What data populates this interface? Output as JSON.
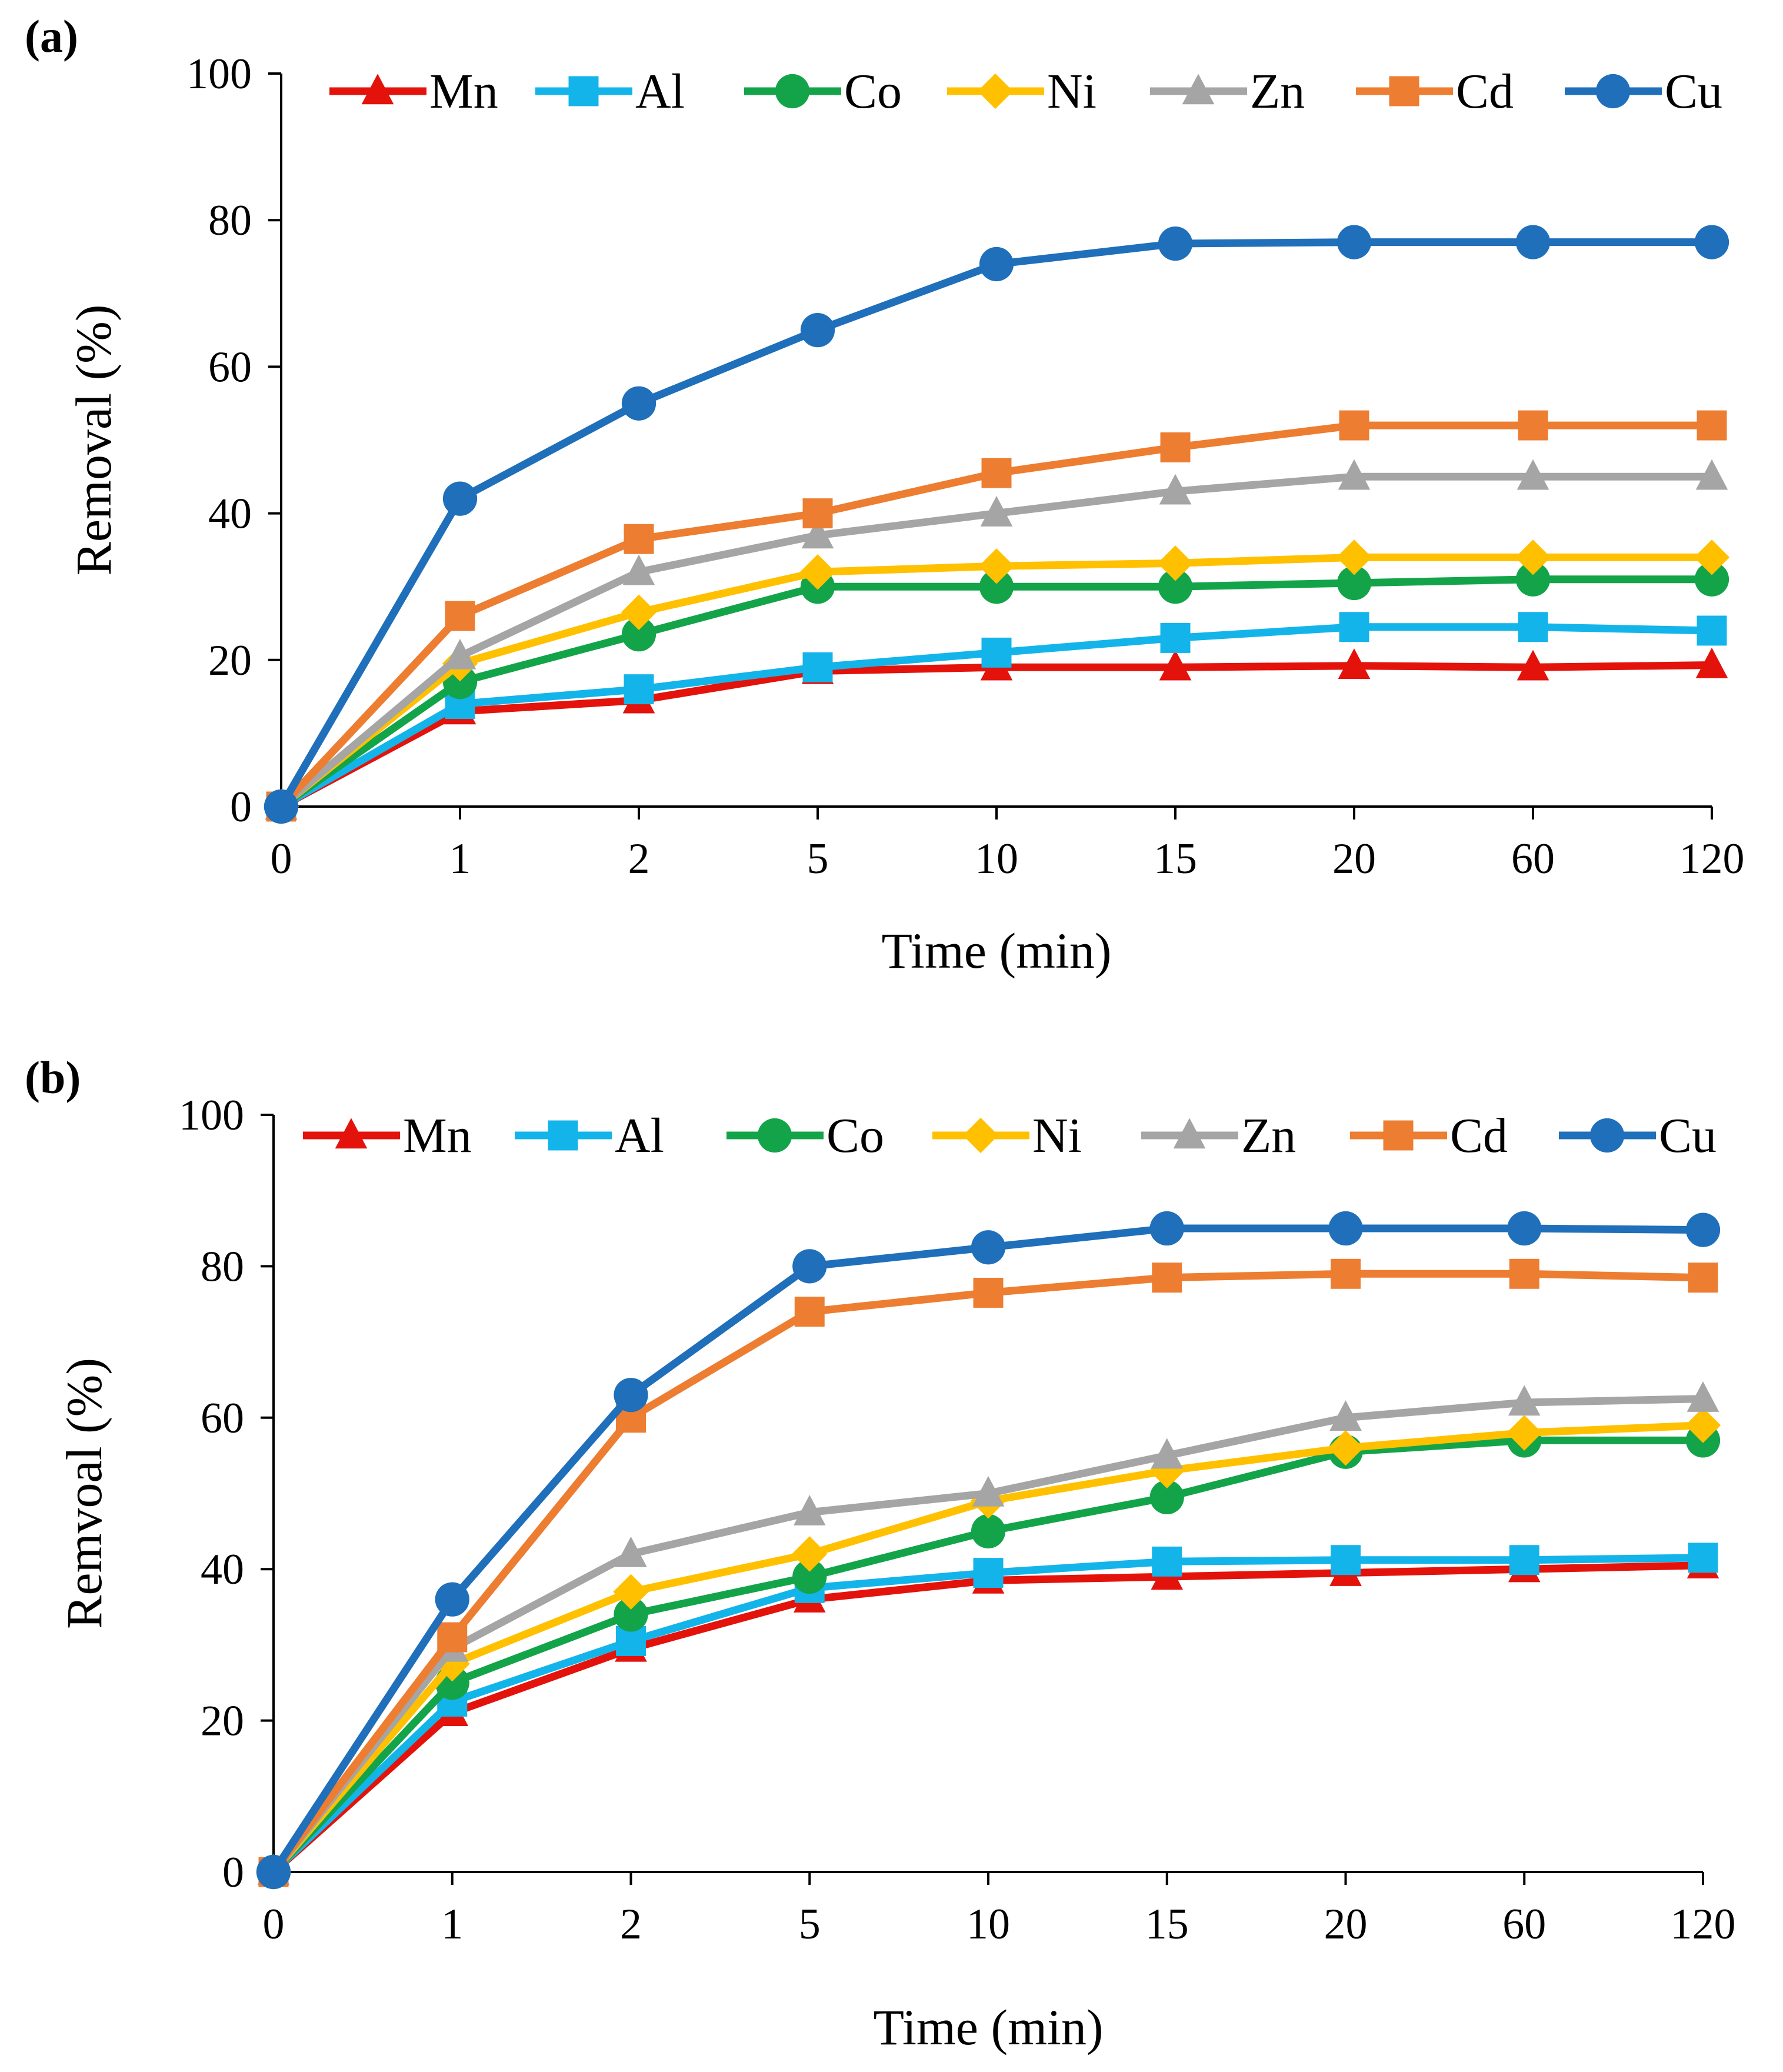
{
  "chart_data": [
    {
      "type": "line",
      "panel_label": "(a)",
      "categories": [
        "0",
        "1",
        "2",
        "5",
        "10",
        "15",
        "20",
        "60",
        "120"
      ],
      "xlabel": "Time (min)",
      "ylabel": "Removal (%)",
      "ylim": [
        0,
        100
      ],
      "yticks": [
        "0",
        "20",
        "40",
        "60",
        "80",
        "100"
      ],
      "legend_position": "top",
      "series": [
        {
          "name": "Mn",
          "color": "#e3120b",
          "marker": "triangle",
          "values": [
            0,
            13,
            14.5,
            18.5,
            19,
            19,
            19.2,
            19,
            19.3
          ]
        },
        {
          "name": "Al",
          "color": "#13b4ea",
          "marker": "square",
          "values": [
            0,
            14,
            16,
            19,
            21,
            23,
            24.5,
            24.5,
            24
          ]
        },
        {
          "name": "Co",
          "color": "#13a44a",
          "marker": "circle",
          "values": [
            0,
            17,
            23.5,
            30,
            30,
            30,
            30.5,
            31,
            31
          ]
        },
        {
          "name": "Ni",
          "color": "#ffc000",
          "marker": "diamond",
          "values": [
            0,
            19.5,
            26.5,
            32,
            32.8,
            33.2,
            34,
            34,
            34
          ]
        },
        {
          "name": "Zn",
          "color": "#a5a5a5",
          "marker": "triangle",
          "values": [
            0,
            20.5,
            32,
            37,
            40,
            43,
            45,
            45,
            45
          ]
        },
        {
          "name": "Cd",
          "color": "#ed7d31",
          "marker": "square",
          "values": [
            0,
            26,
            36.5,
            40,
            45.5,
            49,
            52,
            52,
            52
          ]
        },
        {
          "name": "Cu",
          "color": "#1f6fba",
          "marker": "circle",
          "values": [
            0,
            42,
            55,
            65,
            74,
            76.8,
            77,
            77,
            77
          ]
        }
      ]
    },
    {
      "type": "line",
      "panel_label": "(b)",
      "categories": [
        "0",
        "1",
        "2",
        "5",
        "10",
        "15",
        "20",
        "60",
        "120"
      ],
      "xlabel": "Time (min)",
      "ylabel": "Remvoal (%)",
      "ylim": [
        0,
        100
      ],
      "yticks": [
        "0",
        "20",
        "40",
        "60",
        "80",
        "100"
      ],
      "legend_position": "top",
      "series": [
        {
          "name": "Mn",
          "color": "#e3120b",
          "marker": "triangle",
          "values": [
            0,
            21,
            29.5,
            36,
            38.5,
            39,
            39.5,
            40,
            40.5
          ]
        },
        {
          "name": "Al",
          "color": "#13b4ea",
          "marker": "square",
          "values": [
            0,
            22.5,
            30.5,
            37.5,
            39.5,
            41,
            41.2,
            41.2,
            41.5
          ]
        },
        {
          "name": "Co",
          "color": "#13a44a",
          "marker": "circle",
          "values": [
            0,
            25,
            34,
            39,
            45,
            49.5,
            55.5,
            57,
            57
          ]
        },
        {
          "name": "Ni",
          "color": "#ffc000",
          "marker": "diamond",
          "values": [
            0,
            27.5,
            37,
            42,
            49,
            53,
            56,
            58,
            59
          ]
        },
        {
          "name": "Zn",
          "color": "#a5a5a5",
          "marker": "triangle",
          "values": [
            0,
            29.5,
            42,
            47.5,
            50,
            55,
            60,
            62,
            62.5
          ]
        },
        {
          "name": "Cd",
          "color": "#ed7d31",
          "marker": "square",
          "values": [
            0,
            31,
            60,
            74,
            76.5,
            78.5,
            79,
            79,
            78.5
          ]
        },
        {
          "name": "Cu",
          "color": "#1f6fba",
          "marker": "circle",
          "values": [
            0,
            36,
            63,
            80,
            82.5,
            85,
            85,
            85,
            84.8
          ]
        }
      ]
    }
  ]
}
